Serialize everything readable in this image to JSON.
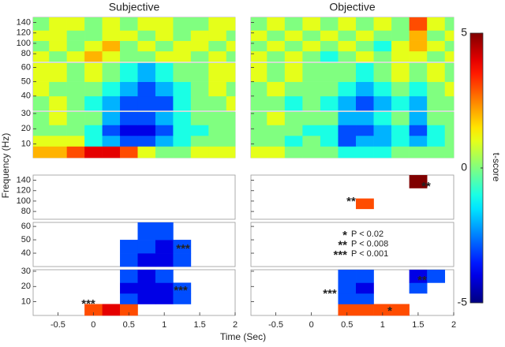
{
  "chart_data": {
    "type": "heatmap",
    "x_label": "Time (Sec)",
    "y_label": "Frequency (Hz)",
    "xlim": [
      -0.85,
      2
    ],
    "xticks": [
      -0.5,
      0,
      0.5,
      1,
      1.5,
      2
    ],
    "x": [
      -0.75,
      -0.5,
      -0.25,
      0,
      0.25,
      0.5,
      0.75,
      1,
      1.25,
      1.5,
      1.75,
      2
    ],
    "bands": [
      {
        "ylim": [
          65,
          150
        ],
        "yticks": [
          80,
          100,
          120,
          140
        ],
        "y": [
          75,
          95,
          115,
          135
        ]
      },
      {
        "ylim": [
          30,
          63
        ],
        "yticks": [
          40,
          50,
          60
        ],
        "y": [
          35,
          45,
          55
        ]
      },
      {
        "ylim": [
          1,
          31
        ],
        "yticks": [
          10,
          20,
          30
        ],
        "y": [
          5,
          12,
          19,
          26
        ]
      }
    ],
    "colorbar": {
      "label": "t-score",
      "ylim": [
        -5,
        5
      ],
      "yticks": [
        -5,
        0,
        5
      ]
    },
    "columns": [
      {
        "title": "Subjective",
        "maps": [
          [
            [
              1,
              0,
              1,
              2,
              1,
              0,
              0,
              1,
              1,
              0,
              1,
              0
            ],
            [
              0,
              1,
              0,
              1,
              2,
              0,
              1,
              0,
              1,
              1,
              0,
              1
            ],
            [
              1,
              1,
              0,
              0,
              1,
              1,
              0,
              1,
              0,
              1,
              1,
              0
            ],
            [
              0,
              1,
              1,
              0,
              1,
              0,
              1,
              1,
              0,
              0,
              1,
              1
            ]
          ],
          [
            [
              0,
              1,
              0,
              -1,
              -2,
              -3,
              -3,
              -3,
              -1,
              0,
              0,
              1
            ],
            [
              1,
              0,
              0,
              0,
              -1,
              -2,
              -3,
              -2,
              -1,
              0,
              1,
              0
            ],
            [
              1,
              1,
              0,
              1,
              0,
              -1,
              -2,
              -1,
              0,
              0,
              1,
              1
            ]
          ],
          [
            [
              2,
              2,
              3,
              4,
              4,
              3,
              1,
              0,
              0,
              1,
              1,
              1
            ],
            [
              1,
              1,
              1,
              -1,
              -2,
              -3,
              -3,
              -2,
              -1,
              0,
              0,
              0
            ],
            [
              0,
              0,
              0,
              -1,
              -3,
              -4,
              -4,
              -3,
              -1,
              -1,
              0,
              0
            ],
            [
              0,
              1,
              0,
              0,
              -2,
              -3,
              -3,
              -2,
              -1,
              0,
              0,
              0
            ]
          ]
        ],
        "significant": [
          [
            [
              null,
              null,
              null,
              null,
              null,
              null,
              null,
              null,
              null,
              null,
              null,
              null
            ],
            [
              null,
              null,
              null,
              null,
              null,
              null,
              null,
              null,
              null,
              null,
              null,
              null
            ],
            [
              null,
              null,
              null,
              null,
              null,
              null,
              null,
              null,
              null,
              null,
              null,
              null
            ],
            [
              null,
              null,
              null,
              null,
              null,
              null,
              null,
              null,
              null,
              null,
              null,
              null
            ]
          ],
          [
            [
              null,
              null,
              null,
              null,
              null,
              -3,
              -4,
              -4,
              -3,
              null,
              null,
              null
            ],
            [
              null,
              null,
              null,
              null,
              null,
              -3,
              -3,
              -4,
              -3,
              null,
              null,
              null
            ],
            [
              null,
              null,
              null,
              null,
              null,
              null,
              -3,
              -3,
              null,
              null,
              null,
              null
            ]
          ],
          [
            [
              null,
              null,
              null,
              3,
              4,
              3,
              null,
              null,
              null,
              null,
              null,
              null
            ],
            [
              null,
              null,
              null,
              null,
              null,
              -3,
              -4,
              -4,
              -3,
              null,
              null,
              null
            ],
            [
              null,
              null,
              null,
              null,
              null,
              -4,
              -4,
              -4,
              -3,
              null,
              null,
              null
            ],
            [
              null,
              null,
              null,
              null,
              null,
              -3,
              -4,
              -3,
              null,
              null,
              null,
              null
            ]
          ]
        ],
        "annotations": [
          "***",
          "***",
          "***"
        ]
      },
      {
        "title": "Objective",
        "maps": [
          [
            [
              1,
              0,
              1,
              0,
              -1,
              0,
              1,
              0,
              1,
              1,
              0,
              1
            ],
            [
              0,
              1,
              0,
              1,
              0,
              1,
              0,
              -1,
              1,
              2,
              1,
              0
            ],
            [
              1,
              0,
              1,
              0,
              1,
              0,
              1,
              0,
              0,
              2,
              0,
              1
            ],
            [
              0,
              1,
              0,
              1,
              0,
              1,
              0,
              1,
              0,
              3,
              1,
              0
            ]
          ],
          [
            [
              0,
              0,
              -1,
              0,
              -1,
              -2,
              -3,
              -2,
              -1,
              -2,
              0,
              0
            ],
            [
              0,
              1,
              0,
              0,
              0,
              -1,
              -2,
              -1,
              0,
              -1,
              0,
              1
            ],
            [
              1,
              0,
              1,
              0,
              0,
              0,
              -1,
              0,
              1,
              0,
              1,
              0
            ]
          ],
          [
            [
              1,
              1,
              0,
              0,
              0,
              -1,
              -1,
              -1,
              0,
              0,
              0,
              0
            ],
            [
              0,
              0,
              -1,
              0,
              -1,
              -3,
              -2,
              -2,
              -1,
              -2,
              -1,
              0
            ],
            [
              0,
              0,
              0,
              -1,
              -1,
              -3,
              -3,
              -2,
              -1,
              -3,
              -1,
              0
            ],
            [
              0,
              1,
              0,
              0,
              0,
              -2,
              -2,
              -1,
              0,
              -2,
              0,
              0
            ]
          ]
        ],
        "significant": [
          [
            [
              null,
              null,
              null,
              null,
              null,
              null,
              null,
              null,
              null,
              null,
              null,
              null
            ],
            [
              null,
              null,
              null,
              null,
              null,
              null,
              3,
              null,
              null,
              null,
              null,
              null
            ],
            [
              null,
              null,
              null,
              null,
              null,
              null,
              null,
              null,
              null,
              null,
              null,
              null
            ],
            [
              null,
              null,
              null,
              null,
              null,
              null,
              null,
              null,
              null,
              5,
              null,
              null
            ]
          ],
          [
            [
              null,
              null,
              null,
              null,
              null,
              null,
              null,
              null,
              null,
              null,
              null,
              null
            ],
            [
              null,
              null,
              null,
              null,
              null,
              null,
              null,
              null,
              null,
              null,
              null,
              null
            ],
            [
              null,
              null,
              null,
              null,
              null,
              null,
              null,
              null,
              null,
              null,
              null,
              null
            ]
          ],
          [
            [
              null,
              null,
              null,
              null,
              null,
              3,
              3,
              3,
              3,
              null,
              null,
              null
            ],
            [
              null,
              null,
              null,
              null,
              null,
              -3,
              -3,
              null,
              null,
              null,
              null,
              null
            ],
            [
              null,
              null,
              null,
              null,
              null,
              -3,
              -4,
              null,
              null,
              -3,
              null,
              null
            ],
            [
              null,
              null,
              null,
              null,
              null,
              -3,
              -3,
              null,
              null,
              -4,
              -3,
              null
            ]
          ]
        ],
        "annotations": [
          "**",
          "**",
          "***",
          "**",
          "*"
        ],
        "legend": [
          {
            "stars": "*",
            "label": "P < 0.02"
          },
          {
            "stars": "**",
            "label": "P < 0.008"
          },
          {
            "stars": "***",
            "label": "P < 0.001"
          }
        ]
      }
    ]
  }
}
